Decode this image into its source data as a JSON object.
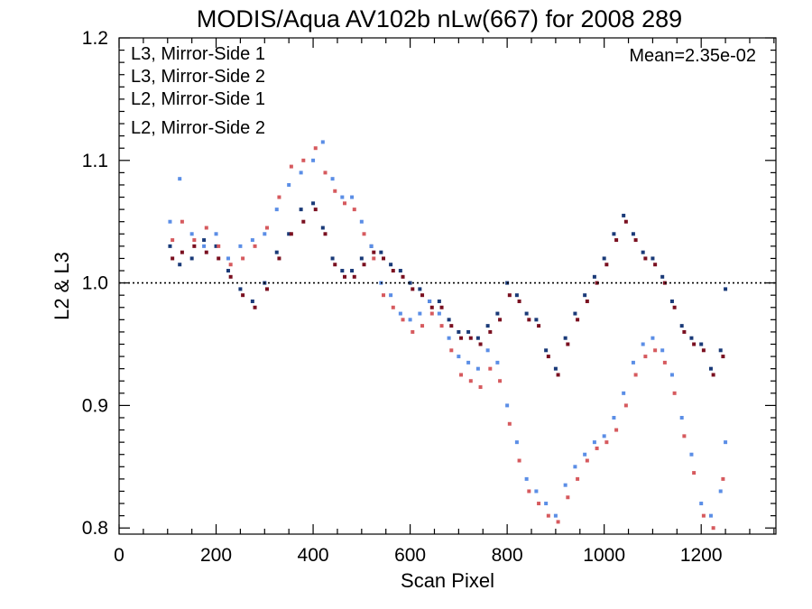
{
  "chart_data": {
    "type": "scatter",
    "title": "MODIS/Aqua AV102b nLw(667) for 2008 289",
    "xlabel": "Scan Pixel",
    "ylabel": "L2 & L3",
    "xlim": [
      0,
      1354
    ],
    "ylim": [
      0.795,
      1.2
    ],
    "x_ticks": [
      0,
      200,
      400,
      600,
      800,
      1000,
      1200
    ],
    "y_ticks": [
      0.8,
      0.9,
      1.0,
      1.1,
      1.2
    ],
    "x_tick_labels": [
      "0",
      "200",
      "400",
      "600",
      "800",
      "1000",
      "1200"
    ],
    "y_tick_labels": [
      "0.8",
      "0.9",
      "1.0",
      "1.1",
      "1.2"
    ],
    "reference_line": 1.0,
    "annotation": "Mean=2.35e-02",
    "legend_position": "top-left",
    "series": [
      {
        "name": "L3, Mirror-Side 1",
        "color": "#1a3a78",
        "points": [
          [
            105,
            1.03
          ],
          [
            125,
            1.015
          ],
          [
            150,
            1.02
          ],
          [
            175,
            1.035
          ],
          [
            200,
            1.03
          ],
          [
            225,
            1.01
          ],
          [
            250,
            0.995
          ],
          [
            275,
            0.985
          ],
          [
            300,
            1.0
          ],
          [
            325,
            1.025
          ],
          [
            350,
            1.04
          ],
          [
            375,
            1.06
          ],
          [
            400,
            1.065
          ],
          [
            420,
            1.045
          ],
          [
            440,
            1.02
          ],
          [
            460,
            1.01
          ],
          [
            480,
            1.01
          ],
          [
            500,
            1.02
          ],
          [
            520,
            1.03
          ],
          [
            540,
            1.025
          ],
          [
            560,
            1.015
          ],
          [
            580,
            1.01
          ],
          [
            600,
            1.0
          ],
          [
            620,
            0.995
          ],
          [
            640,
            0.985
          ],
          [
            660,
            0.985
          ],
          [
            680,
            0.97
          ],
          [
            700,
            0.96
          ],
          [
            720,
            0.96
          ],
          [
            740,
            0.955
          ],
          [
            760,
            0.965
          ],
          [
            780,
            0.975
          ],
          [
            800,
            1.0
          ],
          [
            820,
            0.99
          ],
          [
            840,
            0.975
          ],
          [
            860,
            0.97
          ],
          [
            880,
            0.945
          ],
          [
            900,
            0.93
          ],
          [
            920,
            0.955
          ],
          [
            940,
            0.975
          ],
          [
            960,
            0.99
          ],
          [
            980,
            1.005
          ],
          [
            1000,
            1.02
          ],
          [
            1020,
            1.04
          ],
          [
            1040,
            1.055
          ],
          [
            1060,
            1.04
          ],
          [
            1080,
            1.025
          ],
          [
            1100,
            1.02
          ],
          [
            1120,
            1.005
          ],
          [
            1140,
            0.985
          ],
          [
            1160,
            0.965
          ],
          [
            1180,
            0.955
          ],
          [
            1200,
            0.95
          ],
          [
            1220,
            0.93
          ],
          [
            1240,
            0.945
          ],
          [
            1250,
            0.995
          ]
        ]
      },
      {
        "name": "L3, Mirror-Side 2",
        "color": "#7a1020",
        "points": [
          [
            110,
            1.02
          ],
          [
            130,
            1.025
          ],
          [
            155,
            1.03
          ],
          [
            180,
            1.025
          ],
          [
            205,
            1.02
          ],
          [
            230,
            1.005
          ],
          [
            255,
            0.99
          ],
          [
            280,
            0.98
          ],
          [
            305,
            0.995
          ],
          [
            330,
            1.02
          ],
          [
            355,
            1.04
          ],
          [
            380,
            1.05
          ],
          [
            405,
            1.06
          ],
          [
            425,
            1.04
          ],
          [
            445,
            1.015
          ],
          [
            465,
            1.005
          ],
          [
            485,
            1.005
          ],
          [
            505,
            1.015
          ],
          [
            525,
            1.025
          ],
          [
            545,
            1.02
          ],
          [
            565,
            1.01
          ],
          [
            585,
            1.005
          ],
          [
            605,
            0.995
          ],
          [
            625,
            0.99
          ],
          [
            645,
            0.98
          ],
          [
            665,
            0.98
          ],
          [
            685,
            0.965
          ],
          [
            705,
            0.955
          ],
          [
            725,
            0.955
          ],
          [
            745,
            0.95
          ],
          [
            765,
            0.96
          ],
          [
            785,
            0.97
          ],
          [
            805,
            0.99
          ],
          [
            825,
            0.985
          ],
          [
            845,
            0.97
          ],
          [
            865,
            0.965
          ],
          [
            885,
            0.94
          ],
          [
            905,
            0.925
          ],
          [
            925,
            0.95
          ],
          [
            945,
            0.97
          ],
          [
            965,
            0.985
          ],
          [
            985,
            1.0
          ],
          [
            1005,
            1.015
          ],
          [
            1025,
            1.035
          ],
          [
            1045,
            1.05
          ],
          [
            1065,
            1.035
          ],
          [
            1085,
            1.02
          ],
          [
            1105,
            1.015
          ],
          [
            1125,
            1.0
          ],
          [
            1145,
            0.98
          ],
          [
            1165,
            0.96
          ],
          [
            1185,
            0.95
          ],
          [
            1205,
            0.945
          ],
          [
            1225,
            0.925
          ],
          [
            1245,
            0.94
          ]
        ]
      },
      {
        "name": "L2, Mirror-Side 1",
        "color": "#5b8ee6",
        "points": [
          [
            105,
            1.05
          ],
          [
            125,
            1.085
          ],
          [
            150,
            1.04
          ],
          [
            175,
            1.03
          ],
          [
            200,
            1.04
          ],
          [
            225,
            1.02
          ],
          [
            250,
            1.03
          ],
          [
            275,
            1.035
          ],
          [
            300,
            1.04
          ],
          [
            325,
            1.06
          ],
          [
            350,
            1.08
          ],
          [
            375,
            1.09
          ],
          [
            400,
            1.1
          ],
          [
            420,
            1.115
          ],
          [
            440,
            1.085
          ],
          [
            460,
            1.07
          ],
          [
            480,
            1.07
          ],
          [
            500,
            1.05
          ],
          [
            520,
            1.03
          ],
          [
            540,
            1.0
          ],
          [
            560,
            0.99
          ],
          [
            580,
            0.975
          ],
          [
            600,
            0.97
          ],
          [
            620,
            0.975
          ],
          [
            640,
            0.985
          ],
          [
            660,
            0.975
          ],
          [
            680,
            0.955
          ],
          [
            700,
            0.94
          ],
          [
            720,
            0.935
          ],
          [
            740,
            0.93
          ],
          [
            760,
            0.945
          ],
          [
            780,
            0.935
          ],
          [
            800,
            0.9
          ],
          [
            820,
            0.87
          ],
          [
            840,
            0.84
          ],
          [
            860,
            0.83
          ],
          [
            880,
            0.82
          ],
          [
            900,
            0.81
          ],
          [
            920,
            0.835
          ],
          [
            940,
            0.85
          ],
          [
            960,
            0.86
          ],
          [
            980,
            0.87
          ],
          [
            1000,
            0.875
          ],
          [
            1020,
            0.89
          ],
          [
            1040,
            0.91
          ],
          [
            1060,
            0.935
          ],
          [
            1080,
            0.95
          ],
          [
            1100,
            0.955
          ],
          [
            1120,
            0.945
          ],
          [
            1140,
            0.925
          ],
          [
            1160,
            0.89
          ],
          [
            1180,
            0.86
          ],
          [
            1200,
            0.82
          ],
          [
            1220,
            0.81
          ],
          [
            1240,
            0.83
          ],
          [
            1250,
            0.87
          ]
        ]
      },
      {
        "name": "L2, Mirror-Side 2",
        "color": "#d65a5e",
        "points": [
          [
            110,
            1.035
          ],
          [
            130,
            1.05
          ],
          [
            155,
            1.035
          ],
          [
            180,
            1.045
          ],
          [
            205,
            1.03
          ],
          [
            230,
            1.015
          ],
          [
            255,
            1.02
          ],
          [
            280,
            1.03
          ],
          [
            305,
            1.045
          ],
          [
            330,
            1.07
          ],
          [
            355,
            1.095
          ],
          [
            380,
            1.1
          ],
          [
            405,
            1.11
          ],
          [
            425,
            1.09
          ],
          [
            445,
            1.075
          ],
          [
            465,
            1.065
          ],
          [
            485,
            1.06
          ],
          [
            505,
            1.04
          ],
          [
            525,
            1.02
          ],
          [
            545,
            0.99
          ],
          [
            565,
            0.98
          ],
          [
            585,
            0.97
          ],
          [
            605,
            0.96
          ],
          [
            625,
            0.965
          ],
          [
            645,
            0.975
          ],
          [
            665,
            0.965
          ],
          [
            685,
            0.945
          ],
          [
            705,
            0.925
          ],
          [
            725,
            0.92
          ],
          [
            745,
            0.915
          ],
          [
            765,
            0.93
          ],
          [
            785,
            0.92
          ],
          [
            805,
            0.885
          ],
          [
            825,
            0.855
          ],
          [
            845,
            0.83
          ],
          [
            865,
            0.82
          ],
          [
            885,
            0.81
          ],
          [
            905,
            0.805
          ],
          [
            925,
            0.825
          ],
          [
            945,
            0.84
          ],
          [
            965,
            0.855
          ],
          [
            985,
            0.865
          ],
          [
            1005,
            0.87
          ],
          [
            1025,
            0.88
          ],
          [
            1045,
            0.9
          ],
          [
            1065,
            0.925
          ],
          [
            1085,
            0.94
          ],
          [
            1105,
            0.945
          ],
          [
            1125,
            0.935
          ],
          [
            1145,
            0.91
          ],
          [
            1165,
            0.875
          ],
          [
            1185,
            0.845
          ],
          [
            1205,
            0.81
          ],
          [
            1225,
            0.8
          ],
          [
            1245,
            0.84
          ]
        ]
      }
    ]
  }
}
